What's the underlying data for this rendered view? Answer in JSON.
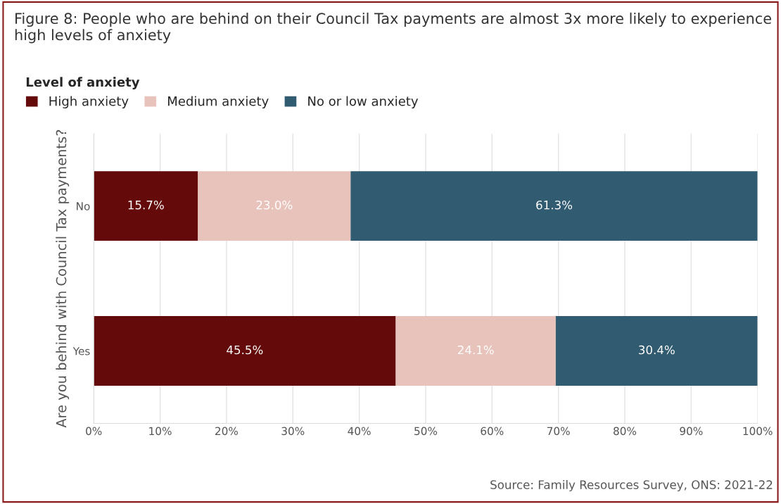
{
  "chart_data": {
    "type": "bar",
    "orientation": "horizontal",
    "stacked": true,
    "title": "Figure 8: People who are behind on their Council Tax payments are almost 3x more likely to experience high levels of anxiety",
    "ylabel": "Are you behind with Council Tax payments?",
    "legend_title": "Level of anxiety",
    "legend": "top left",
    "categories": [
      "No",
      "Yes"
    ],
    "series": [
      {
        "name": "High anxiety",
        "color": "#650a0b",
        "values": [
          15.7,
          45.5
        ],
        "value_labels": [
          "15.7%",
          "45.5%"
        ]
      },
      {
        "name": "Medium anxiety",
        "color": "#e8c3bb",
        "values": [
          23.0,
          24.1
        ],
        "value_labels": [
          "23.0%",
          "24.1%"
        ]
      },
      {
        "name": "No or low anxiety",
        "color": "#315b70",
        "values": [
          61.3,
          30.4
        ],
        "value_labels": [
          "61.3%",
          "30.4%"
        ]
      }
    ],
    "xlim": [
      0,
      100
    ],
    "xticks": [
      {
        "value": 0,
        "label": "0%"
      },
      {
        "value": 10,
        "label": "10%"
      },
      {
        "value": 20,
        "label": "20%"
      },
      {
        "value": 30,
        "label": "30%"
      },
      {
        "value": 40,
        "label": "40%"
      },
      {
        "value": 50,
        "label": "50%"
      },
      {
        "value": 60,
        "label": "60%"
      },
      {
        "value": 70,
        "label": "70%"
      },
      {
        "value": 80,
        "label": "80%"
      },
      {
        "value": 90,
        "label": "90%"
      },
      {
        "value": 100,
        "label": "100%"
      }
    ],
    "grid": "x",
    "annotations": [
      "Source: Family Resources Survey, ONS: 2021-22"
    ]
  }
}
